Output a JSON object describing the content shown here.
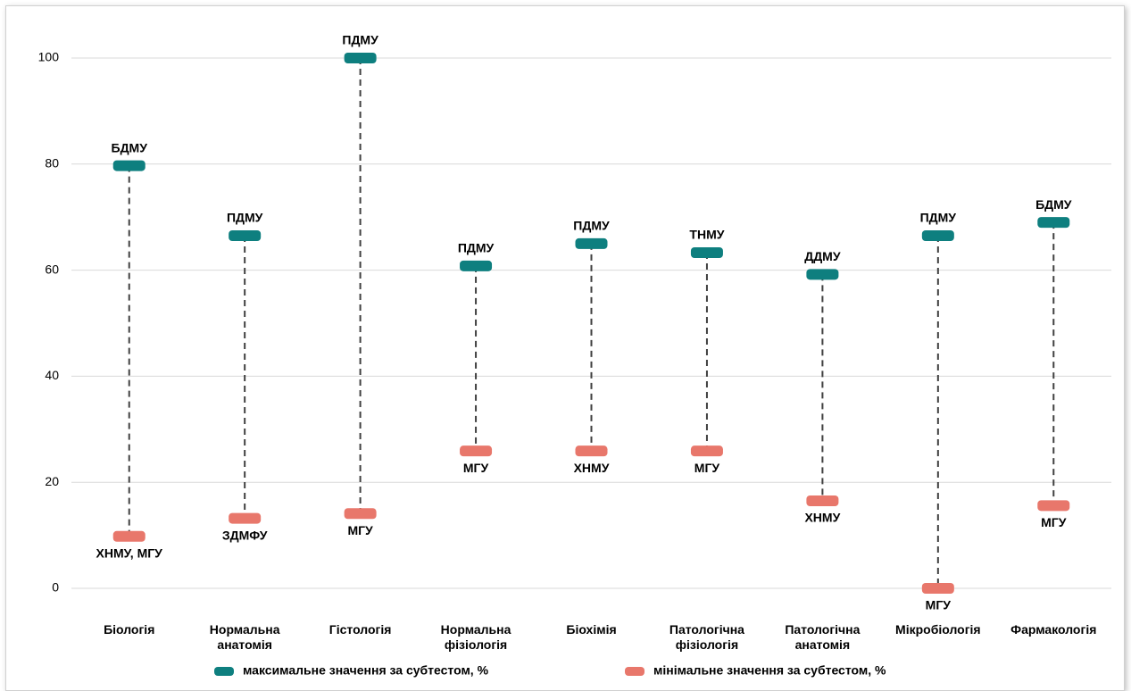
{
  "chart_data": {
    "type": "dumbbell",
    "categories": [
      "Біологія",
      "Нормальна анатомія",
      "Гістологія",
      "Нормальна фізіологія",
      "Біохімія",
      "Патологічна фізіологія",
      "Патологічна анатомія",
      "Мікробіологія",
      "Фармакологія"
    ],
    "series": [
      {
        "name": "максимальне значення за субтестом, %",
        "color": "#0e7f7f",
        "values": [
          79.7,
          66.5,
          100,
          60.8,
          65,
          63.3,
          59.2,
          66.5,
          69
        ],
        "labels": [
          "БДМУ",
          "ПДМУ",
          "ПДМУ",
          "ПДМУ",
          "ПДМУ",
          "ТНМУ",
          "ДДМУ",
          "ПДМУ",
          "БДМУ"
        ]
      },
      {
        "name": "мінімальне значення за субтестом, %",
        "color": "#e8776b",
        "values": [
          9.8,
          13.2,
          14.1,
          25.9,
          25.9,
          25.9,
          16.5,
          0,
          15.6
        ],
        "labels": [
          "ХНМУ, МГУ",
          "ЗДМФУ",
          "МГУ",
          "МГУ",
          "ХНМУ",
          "МГУ",
          "ХНМУ",
          "МГУ",
          "МГУ"
        ]
      }
    ],
    "ylim": [
      0,
      100
    ],
    "yticks": [
      0,
      20,
      40,
      60,
      80,
      100
    ],
    "grid": true,
    "legend": "bottom"
  }
}
